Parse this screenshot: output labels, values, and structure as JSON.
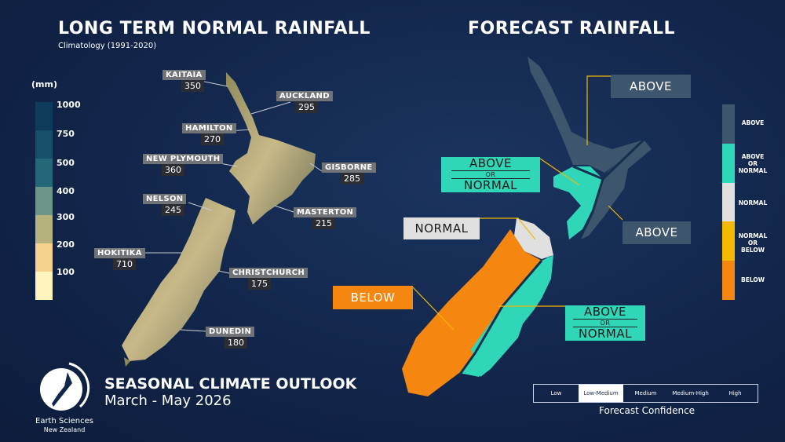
{
  "left": {
    "title": "LONG TERM NORMAL RAINFALL",
    "subtitle": "Climatology (1991-2020)",
    "unit": "(mm)",
    "scale": [
      {
        "label": "1000",
        "color": "#0e3a5c"
      },
      {
        "label": "750",
        "color": "#174e6a"
      },
      {
        "label": "500",
        "color": "#246776"
      },
      {
        "label": "400",
        "color": "#6e958a"
      },
      {
        "label": "300",
        "color": "#b5b27e"
      },
      {
        "label": "200",
        "color": "#f6d28e"
      },
      {
        "label": "100",
        "color": "#fdf5bd"
      }
    ],
    "cities": [
      {
        "name": "KAITAIA",
        "value": "350"
      },
      {
        "name": "AUCKLAND",
        "value": "295"
      },
      {
        "name": "HAMILTON",
        "value": "270"
      },
      {
        "name": "NEW PLYMOUTH",
        "value": "360"
      },
      {
        "name": "GISBORNE",
        "value": "285"
      },
      {
        "name": "NELSON",
        "value": "245"
      },
      {
        "name": "MASTERTON",
        "value": "215"
      },
      {
        "name": "HOKITIKA",
        "value": "710"
      },
      {
        "name": "CHRISTCHURCH",
        "value": "175"
      },
      {
        "name": "DUNEDIN",
        "value": "180"
      }
    ]
  },
  "right": {
    "title": "FORECAST RAINFALL",
    "regions": [
      {
        "top": "ABOVE"
      },
      {
        "top": "ABOVE",
        "or": "OR",
        "bottom": "NORMAL"
      },
      {
        "top": "ABOVE"
      },
      {
        "top": "NORMAL"
      },
      {
        "top": "BELOW"
      },
      {
        "top": "ABOVE",
        "or": "OR",
        "bottom": "NORMAL"
      }
    ],
    "legend": [
      {
        "label": "ABOVE",
        "color": "#3e566d"
      },
      {
        "label": "ABOVE OR NORMAL",
        "color": "#2fd6b8"
      },
      {
        "label": "NORMAL",
        "color": "#e0e0e0"
      },
      {
        "label": "NORMAL OR BELOW",
        "color": "#f5b800"
      },
      {
        "label": "BELOW",
        "color": "#f5860f"
      }
    ],
    "confidence": {
      "levels": [
        "Low",
        "Low-Medium",
        "Medium",
        "Medium-High",
        "High"
      ],
      "selected": "Low-Medium",
      "label": "Forecast Confidence"
    }
  },
  "footer": {
    "title": "SEASONAL CLIMATE OUTLOOK",
    "period": "March - May 2026",
    "logo_text": "Earth Sciences",
    "logo_sub": "New Zealand"
  }
}
